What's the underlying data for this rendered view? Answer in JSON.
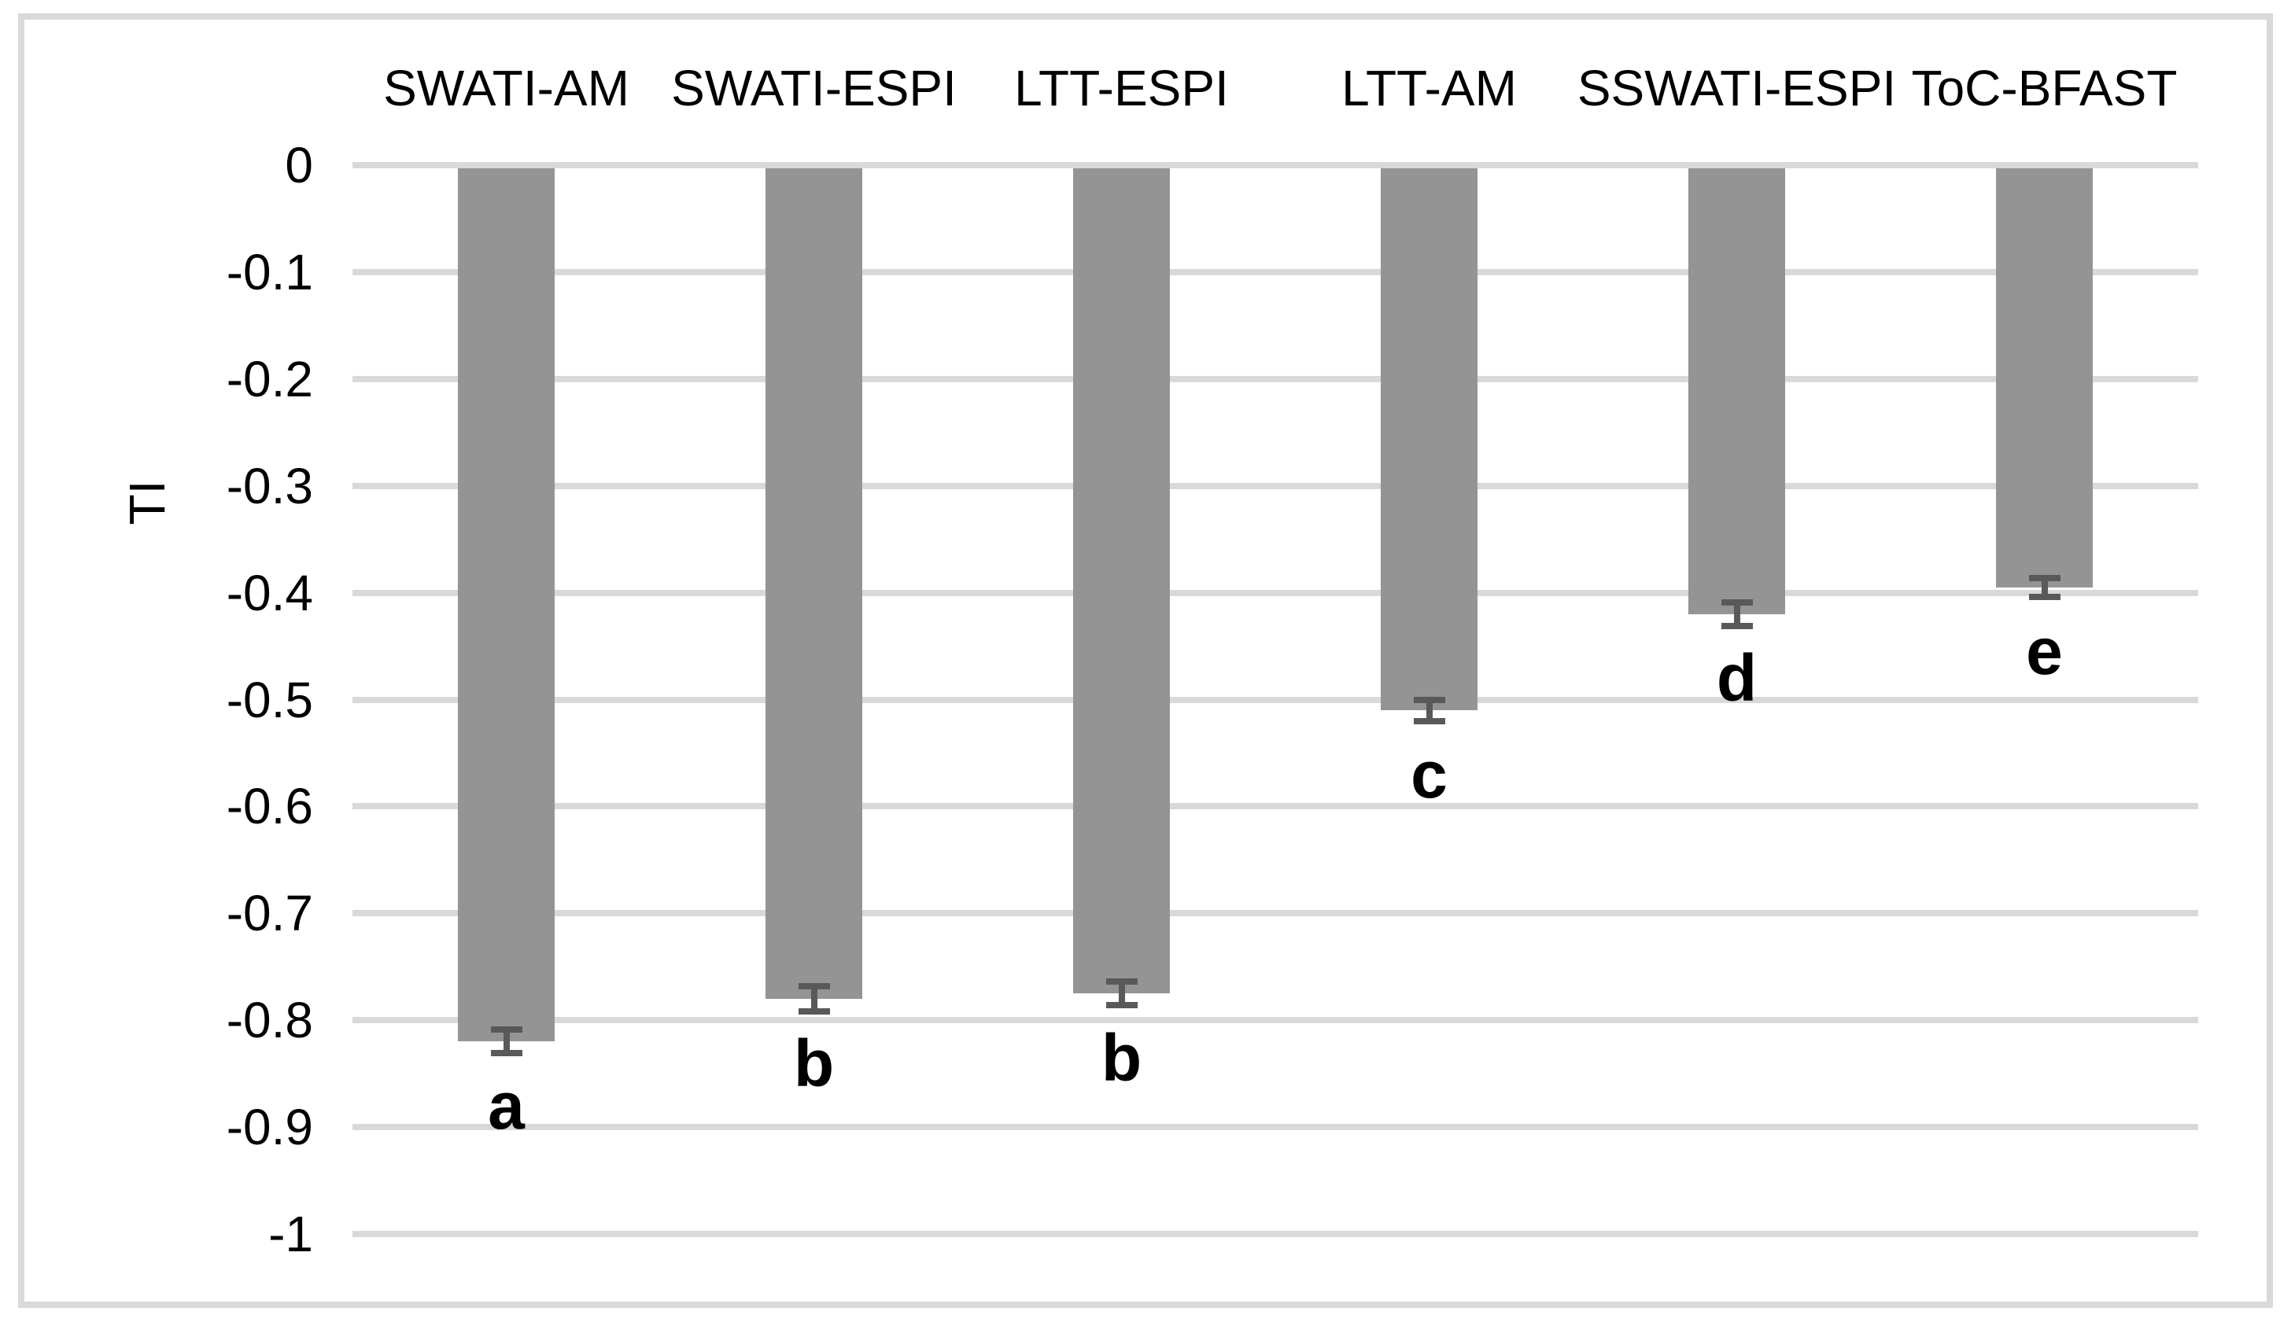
{
  "figure": {
    "background_color": "#ffffff",
    "border_color": "#d9d9d9",
    "text_color": "#000000"
  },
  "chart_data": {
    "type": "bar",
    "orientation": "vertical",
    "title": "",
    "xlabel": "",
    "ylabel": "TI",
    "categories": [
      "SWATI-AM",
      "SWATI-ESPI",
      "LTT-ESPI",
      "LTT-AM",
      "SSWATI-ESPI",
      "ToC-BFAST"
    ],
    "values": [
      -0.82,
      -0.78,
      -0.775,
      -0.51,
      -0.42,
      -0.395
    ],
    "error_bars": [
      0.011,
      0.012,
      0.011,
      0.01,
      0.011,
      0.009
    ],
    "bar_letter_labels": [
      "a",
      "b",
      "b",
      "c",
      "d",
      "e"
    ],
    "category_label_position": "top",
    "ylim": [
      -1,
      0
    ],
    "ytick_step": 0.1,
    "yticks": [
      "0",
      "-0.1",
      "-0.2",
      "-0.3",
      "-0.4",
      "-0.5",
      "-0.6",
      "-0.7",
      "-0.8",
      "-0.9",
      "-1"
    ],
    "grid": true,
    "legend": "none",
    "bar_color": "#949494",
    "error_bar_color": "#595959",
    "gridline_color": "#d9d9d9"
  }
}
